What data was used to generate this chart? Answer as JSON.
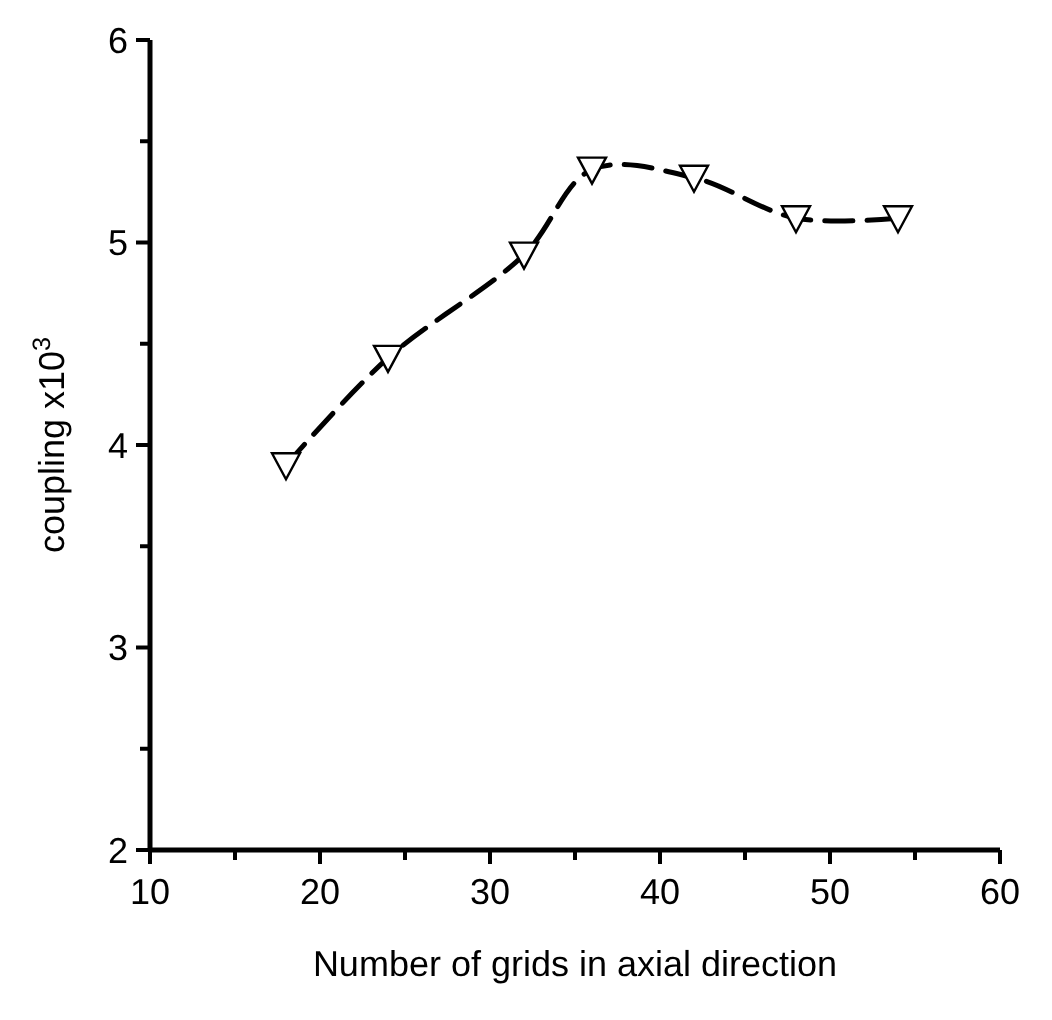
{
  "chart_data": {
    "type": "line",
    "xlabel": "Number of grids in axial direction",
    "ylabel": "coupling x10$^{3}$",
    "x": [
      18,
      24,
      32,
      36,
      42,
      48,
      54
    ],
    "series": [
      {
        "color": "#000000",
        "values": [
          3.9,
          4.43,
          4.94,
          5.36,
          5.32,
          5.12,
          5.12
        ]
      }
    ],
    "xlim": [
      10,
      60
    ],
    "xticks": [
      10,
      {
        "value": 15,
        "label": null
      },
      20,
      {
        "value": 25,
        "label": null
      },
      30,
      {
        "value": 35,
        "label": null
      },
      40,
      {
        "value": 45,
        "label": null
      },
      50,
      {
        "value": 55,
        "label": null
      },
      60
    ],
    "ylim": [
      2,
      6
    ],
    "yticks": [
      2,
      {
        "value": 2.5,
        "label": null
      },
      3,
      {
        "value": 3.5,
        "label": null
      },
      4,
      {
        "value": 4.5,
        "label": null
      },
      5,
      {
        "value": 5.5,
        "label": null
      },
      6
    ],
    "marker": "triangle",
    "line_style": "dashed",
    "grid": false
  }
}
